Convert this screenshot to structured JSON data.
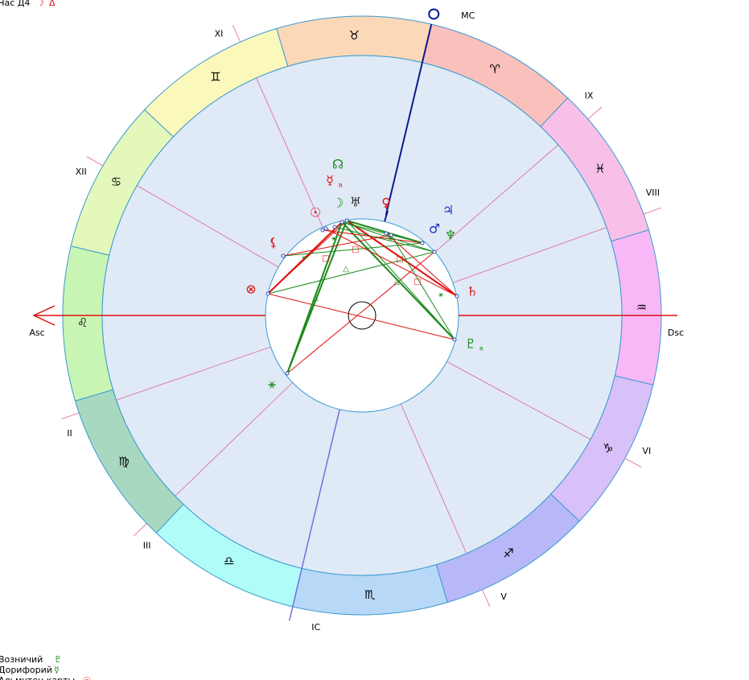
{
  "header": {
    "label": "Час Д4",
    "symbols": [
      "☽",
      "Δ"
    ]
  },
  "signs": [
    "♈",
    "♉",
    "♊",
    "♋",
    "♌",
    "♍",
    "♎",
    "♏",
    "♐",
    "♑",
    "♒",
    "♓"
  ],
  "houses": [
    "Asc",
    "II",
    "III",
    "IC",
    "V",
    "VI",
    "Dsc",
    "VIII",
    "IX",
    "MC",
    "XI",
    "XII"
  ],
  "planets": [
    {
      "glyph": "☉"
    },
    {
      "glyph": "☽"
    },
    {
      "glyph": "☿",
      "retro": "R"
    },
    {
      "glyph": "☊"
    },
    {
      "glyph": "♅"
    },
    {
      "glyph": "♀"
    },
    {
      "glyph": "♃"
    },
    {
      "glyph": "♂"
    },
    {
      "glyph": "♆"
    },
    {
      "glyph": "♄"
    },
    {
      "glyph": "♇",
      "retro": "R"
    },
    {
      "glyph": "⚸"
    },
    {
      "glyph": "⊗"
    },
    {
      "glyph": "⚹"
    }
  ],
  "footer": [
    {
      "label": "Возничий",
      "symbol": "♇"
    },
    {
      "label": "Дорифорий",
      "symbol": "☿"
    },
    {
      "label": "Альмутен карты",
      "symbol": "☉"
    }
  ]
}
